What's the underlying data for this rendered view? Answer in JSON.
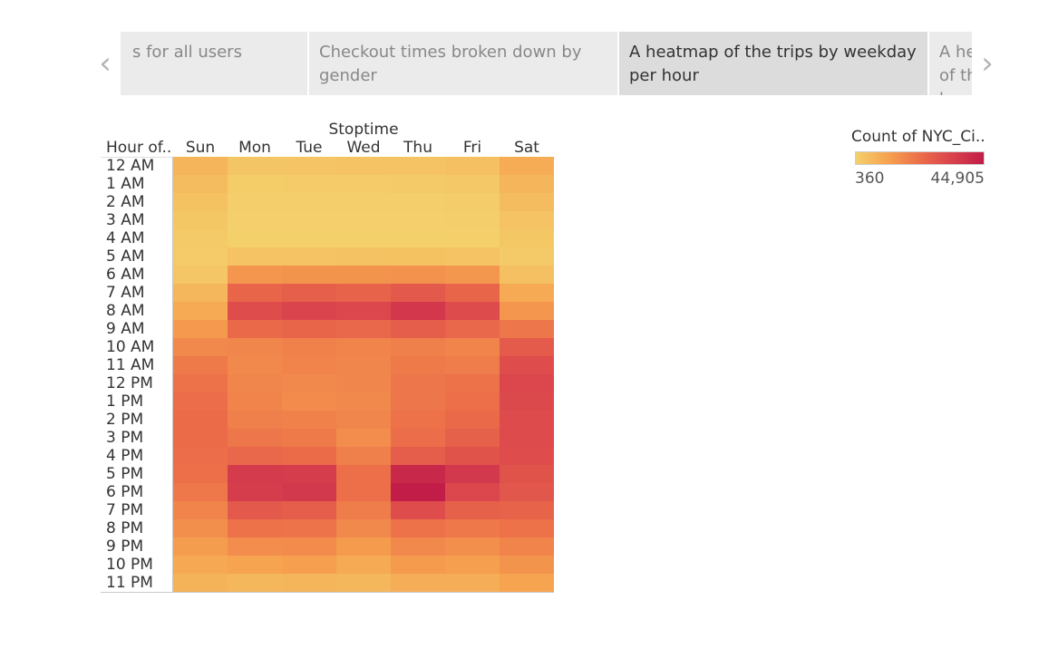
{
  "story_nav": {
    "prev_icon": "chevron-left-icon",
    "next_icon": "chevron-right-icon",
    "prev_glyph": "‹",
    "next_glyph": "›",
    "tabs": [
      {
        "label": "s for all users",
        "active": false
      },
      {
        "label": "Checkout times broken down by gender",
        "active": false
      },
      {
        "label": "A heatmap of the trips by weekday per hour",
        "active": true
      },
      {
        "label": "A heatmap of the trips by weekday per hour",
        "active": false
      }
    ]
  },
  "colors": {
    "low": "#f4d06b",
    "mid": "#f6a24f",
    "midhigh": "#ec6e49",
    "high": "#d9424d",
    "max": "#c11d48"
  },
  "chart_data": {
    "type": "heatmap",
    "title": "Stoptime",
    "row_header": "Hour of..",
    "columns": [
      "Sun",
      "Mon",
      "Tue",
      "Wed",
      "Thu",
      "Fri",
      "Sat"
    ],
    "rows": [
      "12 AM",
      "1 AM",
      "2 AM",
      "3 AM",
      "4 AM",
      "5 AM",
      "6 AM",
      "7 AM",
      "8 AM",
      "9 AM",
      "10 AM",
      "11 AM",
      "12 PM",
      "1 PM",
      "2 PM",
      "3 PM",
      "4 PM",
      "5 PM",
      "6 PM",
      "7 PM",
      "8 PM",
      "9 PM",
      "10 PM",
      "11 PM"
    ],
    "values": [
      [
        6800,
        3000,
        3200,
        3400,
        3600,
        4200,
        9000
      ],
      [
        5200,
        1400,
        1500,
        1600,
        1700,
        2200,
        7000
      ],
      [
        3800,
        800,
        800,
        900,
        900,
        1300,
        5200
      ],
      [
        2600,
        500,
        500,
        550,
        550,
        800,
        3500
      ],
      [
        2000,
        400,
        360,
        400,
        400,
        600,
        2600
      ],
      [
        1600,
        3500,
        3600,
        3700,
        3800,
        3600,
        2000
      ],
      [
        2800,
        14000,
        14500,
        14500,
        15000,
        13800,
        4200
      ],
      [
        6500,
        25000,
        26500,
        25500,
        28000,
        25000,
        9500
      ],
      [
        9500,
        31000,
        33000,
        32500,
        37000,
        31500,
        14000
      ],
      [
        13500,
        24000,
        25000,
        24500,
        27000,
        24500,
        21000
      ],
      [
        17000,
        17500,
        18500,
        18000,
        19000,
        18000,
        27500
      ],
      [
        20000,
        17000,
        18000,
        17500,
        20000,
        19500,
        31000
      ],
      [
        22000,
        17500,
        17000,
        17500,
        21000,
        22000,
        32500
      ],
      [
        23000,
        18000,
        16500,
        17000,
        21000,
        22500,
        32000
      ],
      [
        23500,
        19000,
        18500,
        17500,
        22000,
        24000,
        31500
      ],
      [
        23500,
        21000,
        20000,
        16000,
        23000,
        26000,
        31500
      ],
      [
        23000,
        24500,
        23500,
        19000,
        27000,
        29500,
        31000
      ],
      [
        22500,
        36000,
        35500,
        22500,
        41500,
        36500,
        29500
      ],
      [
        20500,
        35500,
        36500,
        22500,
        44905,
        32500,
        28500
      ],
      [
        18000,
        28000,
        27000,
        19500,
        31000,
        26000,
        25500
      ],
      [
        15500,
        22000,
        21500,
        17000,
        22000,
        20500,
        22000
      ],
      [
        12500,
        16000,
        16500,
        13000,
        17000,
        15500,
        18000
      ],
      [
        10000,
        11000,
        12000,
        9500,
        13000,
        12000,
        14500
      ],
      [
        7500,
        6500,
        7000,
        6500,
        8500,
        8500,
        11000
      ]
    ],
    "legend": {
      "title": "Count of NYC_Ci..",
      "min": 360,
      "max": 44905,
      "min_label": "360",
      "max_label": "44,905"
    }
  }
}
